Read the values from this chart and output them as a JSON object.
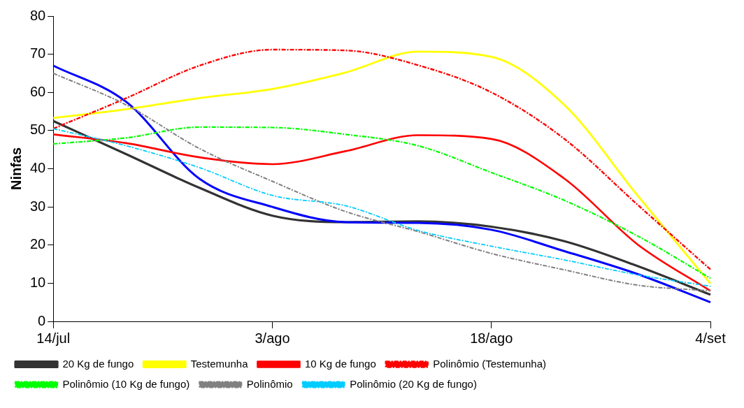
{
  "chart_data": {
    "type": "line",
    "ylabel": "Ninfas",
    "categories": [
      "14/jul",
      null,
      null,
      "3/ago",
      null,
      null,
      "18/ago",
      null,
      null,
      "4/set"
    ],
    "ylim": [
      0,
      80
    ],
    "yticks": [
      0,
      10,
      20,
      30,
      40,
      50,
      60,
      70,
      80
    ],
    "grid": false,
    "legend": "bottom",
    "marker": "none",
    "series": [
      {
        "name": "20 Kg de fungo",
        "color": "#333333",
        "line_style": "solid",
        "values": [
          52.5,
          43.8,
          35,
          27.7,
          26,
          26.2,
          24.8,
          21,
          14.5,
          7
        ]
      },
      {
        "color": "#0000ff",
        "line_style": "solid",
        "values": [
          67,
          57.5,
          37.4,
          30,
          26,
          25.8,
          24,
          18.4,
          12.4,
          5
        ]
      },
      {
        "name": "Testemunha",
        "color": "#ffff00",
        "line_style": "solid",
        "values": [
          53.3,
          55.6,
          58.5,
          60.9,
          65.2,
          70.7,
          69.3,
          56.7,
          33,
          9.9
        ]
      },
      {
        "name": "10 Kg de fungo",
        "color": "#ff0000",
        "line_style": "solid",
        "values": [
          49,
          46.7,
          43,
          41.2,
          44.6,
          48.8,
          47.8,
          37.4,
          20.2,
          8
        ]
      },
      {
        "name": "Polinômio (Testemunha)",
        "color": "#ff0000",
        "line_style": "dashed",
        "values": [
          50.5,
          58.5,
          67,
          71.2,
          71,
          67.1,
          60,
          47.8,
          30.6,
          13.6
        ]
      },
      {
        "name": "Polinômio (10 Kg de fungo)",
        "color": "#00ff00",
        "line_style": "dashed",
        "values": [
          46.5,
          48.1,
          50.9,
          50.8,
          49,
          46,
          39,
          31.7,
          22.4,
          11.3
        ]
      },
      {
        "name": "Polinômio",
        "color": "#808080",
        "line_style": "dashed",
        "values": [
          65,
          56.7,
          45.3,
          36.7,
          28.8,
          23.5,
          17.8,
          13.5,
          9.5,
          8
        ]
      },
      {
        "name": "Polinômio (20 Kg de fungo)",
        "color": "#00ccff",
        "line_style": "dashed",
        "values": [
          50.5,
          46,
          40.3,
          33,
          30.3,
          23.8,
          19.7,
          16.1,
          12.2,
          9.2
        ]
      }
    ]
  }
}
